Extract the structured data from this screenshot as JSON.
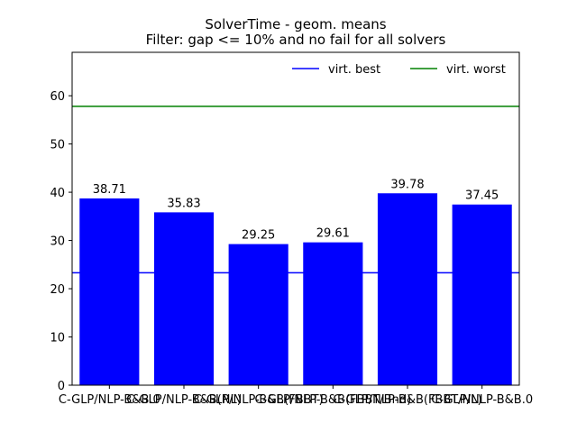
{
  "chart_data": {
    "type": "bar",
    "title": "SolverTime - geom. means",
    "subtitle": "Filter: gap <= 10% and no fail for all solvers",
    "xlabel": "",
    "ylabel": "",
    "ylim": [
      0,
      69
    ],
    "yticks": [
      0,
      10,
      20,
      30,
      40,
      50,
      60
    ],
    "categories": [
      "C-GLP/NLP-B&B.0",
      "C-GLP/NLP-B&B(NL)",
      "C-GLP/NLP-B&B(FBBT)",
      "C-GLP/NLP-B&B(FBBT/Bnd)",
      "C-GLP/NLP-B&B(FBBT/NL)",
      "C-GLP/NLP-B&B.0"
    ],
    "values": [
      38.71,
      35.83,
      29.25,
      29.61,
      39.78,
      37.45
    ],
    "value_labels": [
      "38.71",
      "35.83",
      "29.25",
      "29.61",
      "39.78",
      "37.45"
    ],
    "bar_color": "#0000ff",
    "reference_lines": [
      {
        "name": "virt. best",
        "value": 23.3,
        "color": "#0000ff"
      },
      {
        "name": "virt. worst",
        "value": 57.8,
        "color": "#008000"
      }
    ],
    "legend_position": "top-right",
    "grid": false
  }
}
